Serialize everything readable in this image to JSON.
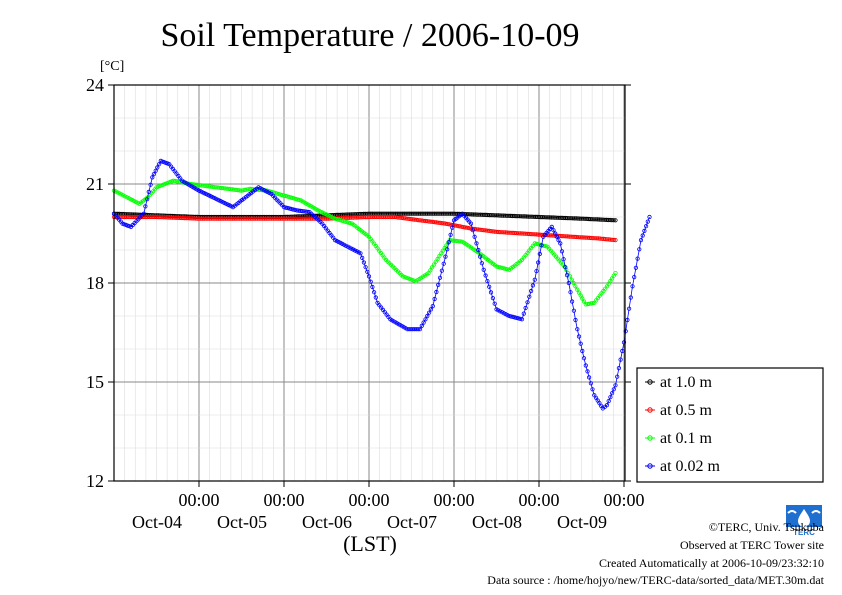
{
  "chart_data": {
    "type": "scatter",
    "title": "Soil Temperature / 2006-10-09",
    "ylabel": "[°C]",
    "xlabel": "(LST)",
    "ylim": [
      12,
      24
    ],
    "yticks": [
      12,
      15,
      18,
      21,
      24
    ],
    "xlim": [
      0,
      6
    ],
    "xticks": [
      {
        "x": 1,
        "time": "00:00",
        "date": "Oct-04"
      },
      {
        "x": 2,
        "time": "00:00",
        "date": "Oct-05"
      },
      {
        "x": 3,
        "time": "00:00",
        "date": "Oct-06"
      },
      {
        "x": 4,
        "time": "00:00",
        "date": "Oct-07"
      },
      {
        "x": 5,
        "time": "00:00",
        "date": "Oct-08"
      },
      {
        "x": 6,
        "time": "00:00",
        "date": "Oct-09"
      }
    ],
    "grid": true,
    "legend_position": "bottom-right outside",
    "series": [
      {
        "name": "at 1.0 m",
        "color": "#000000",
        "points": [
          [
            0,
            20.1
          ],
          [
            0.5,
            20.05
          ],
          [
            1,
            20.0
          ],
          [
            1.5,
            20.0
          ],
          [
            2,
            20.0
          ],
          [
            2.5,
            20.05
          ],
          [
            3,
            20.1
          ],
          [
            3.5,
            20.1
          ],
          [
            4,
            20.1
          ],
          [
            4.5,
            20.05
          ],
          [
            5,
            20.0
          ],
          [
            5.5,
            19.95
          ],
          [
            5.9,
            19.9
          ]
        ]
      },
      {
        "name": "at 0.5 m",
        "color": "#ff0000",
        "points": [
          [
            0,
            20.0
          ],
          [
            0.5,
            20.0
          ],
          [
            1,
            19.95
          ],
          [
            1.5,
            19.95
          ],
          [
            2,
            19.95
          ],
          [
            2.5,
            19.95
          ],
          [
            3,
            20.0
          ],
          [
            3.3,
            20.0
          ],
          [
            3.6,
            19.9
          ],
          [
            3.9,
            19.8
          ],
          [
            4.2,
            19.65
          ],
          [
            4.5,
            19.55
          ],
          [
            4.8,
            19.5
          ],
          [
            5.1,
            19.45
          ],
          [
            5.4,
            19.4
          ],
          [
            5.7,
            19.35
          ],
          [
            5.9,
            19.3
          ]
        ]
      },
      {
        "name": "at 0.1 m",
        "color": "#00ff00",
        "points": [
          [
            0,
            20.8
          ],
          [
            0.3,
            20.4
          ],
          [
            0.4,
            20.6
          ],
          [
            0.5,
            20.9
          ],
          [
            0.7,
            21.1
          ],
          [
            0.9,
            21.0
          ],
          [
            1.2,
            20.9
          ],
          [
            1.5,
            20.8
          ],
          [
            1.6,
            20.85
          ],
          [
            1.8,
            20.8
          ],
          [
            2.0,
            20.65
          ],
          [
            2.2,
            20.5
          ],
          [
            2.4,
            20.2
          ],
          [
            2.6,
            19.95
          ],
          [
            2.8,
            19.8
          ],
          [
            3.0,
            19.4
          ],
          [
            3.2,
            18.7
          ],
          [
            3.4,
            18.2
          ],
          [
            3.55,
            18.05
          ],
          [
            3.7,
            18.3
          ],
          [
            3.85,
            18.9
          ],
          [
            3.95,
            19.3
          ],
          [
            4.1,
            19.25
          ],
          [
            4.3,
            18.9
          ],
          [
            4.5,
            18.5
          ],
          [
            4.65,
            18.4
          ],
          [
            4.8,
            18.7
          ],
          [
            4.95,
            19.2
          ],
          [
            5.1,
            19.1
          ],
          [
            5.3,
            18.5
          ],
          [
            5.45,
            17.8
          ],
          [
            5.55,
            17.35
          ],
          [
            5.65,
            17.4
          ],
          [
            5.8,
            17.9
          ],
          [
            5.9,
            18.3
          ]
        ]
      },
      {
        "name": "at 0.02 m",
        "color": "#0000ff",
        "points": [
          [
            0,
            20.1
          ],
          [
            0.1,
            19.8
          ],
          [
            0.2,
            19.7
          ],
          [
            0.35,
            20.1
          ],
          [
            0.45,
            21.2
          ],
          [
            0.55,
            21.7
          ],
          [
            0.65,
            21.6
          ],
          [
            0.8,
            21.1
          ],
          [
            1.0,
            20.8
          ],
          [
            1.2,
            20.55
          ],
          [
            1.4,
            20.3
          ],
          [
            1.55,
            20.6
          ],
          [
            1.7,
            20.9
          ],
          [
            1.85,
            20.7
          ],
          [
            2.0,
            20.3
          ],
          [
            2.15,
            20.2
          ],
          [
            2.3,
            20.15
          ],
          [
            2.45,
            19.8
          ],
          [
            2.6,
            19.3
          ],
          [
            2.75,
            19.1
          ],
          [
            2.9,
            18.9
          ],
          [
            3.0,
            18.2
          ],
          [
            3.1,
            17.4
          ],
          [
            3.25,
            16.9
          ],
          [
            3.45,
            16.6
          ],
          [
            3.6,
            16.6
          ],
          [
            3.75,
            17.3
          ],
          [
            3.9,
            18.8
          ],
          [
            4.0,
            19.9
          ],
          [
            4.1,
            20.1
          ],
          [
            4.2,
            19.8
          ],
          [
            4.35,
            18.4
          ],
          [
            4.5,
            17.2
          ],
          [
            4.65,
            17.0
          ],
          [
            4.8,
            16.9
          ],
          [
            4.95,
            18.1
          ],
          [
            5.05,
            19.4
          ],
          [
            5.15,
            19.7
          ],
          [
            5.25,
            19.2
          ],
          [
            5.35,
            18.0
          ],
          [
            5.45,
            16.6
          ],
          [
            5.55,
            15.5
          ],
          [
            5.65,
            14.6
          ],
          [
            5.75,
            14.2
          ],
          [
            5.8,
            14.3
          ],
          [
            5.9,
            14.9
          ],
          [
            6.0,
            16.2
          ],
          [
            6.1,
            17.9
          ],
          [
            6.2,
            19.3
          ],
          [
            6.3,
            20.0
          ]
        ]
      }
    ]
  },
  "credits": {
    "line1": "©TERC, Univ. Tsukuba",
    "line2": "Observed at TERC Tower site",
    "line3": "Created Automatically at 2006-10-09/23:32:10",
    "line4": "Data source : /home/hojyo/new/TERC-data/sorted_data/MET.30m.dat",
    "logo_text": "TERC"
  }
}
